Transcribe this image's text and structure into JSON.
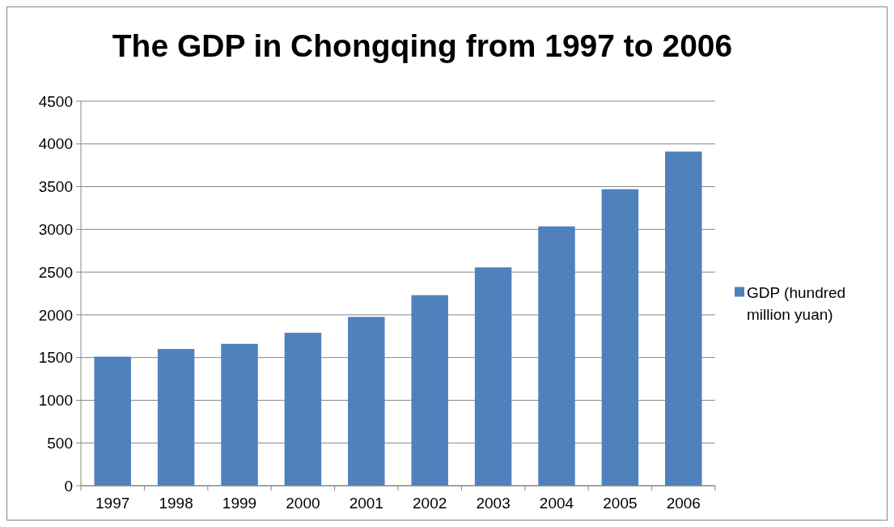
{
  "chart_data": {
    "type": "bar",
    "title": "The GDP in Chongqing from 1997 to 2006",
    "categories": [
      "1997",
      "1998",
      "1999",
      "2000",
      "2001",
      "2002",
      "2003",
      "2004",
      "2005",
      "2006"
    ],
    "series": [
      {
        "name": "GDP (hundred million yuan)",
        "color": "#4f81bd",
        "values": [
          1510,
          1600,
          1660,
          1790,
          1975,
          2230,
          2555,
          3035,
          3470,
          3910
        ]
      }
    ],
    "ylim": [
      0,
      4500
    ],
    "yticks": [
      0,
      500,
      1000,
      1500,
      2000,
      2500,
      3000,
      3500,
      4000,
      4500
    ],
    "grid": "y",
    "legend": "right"
  }
}
